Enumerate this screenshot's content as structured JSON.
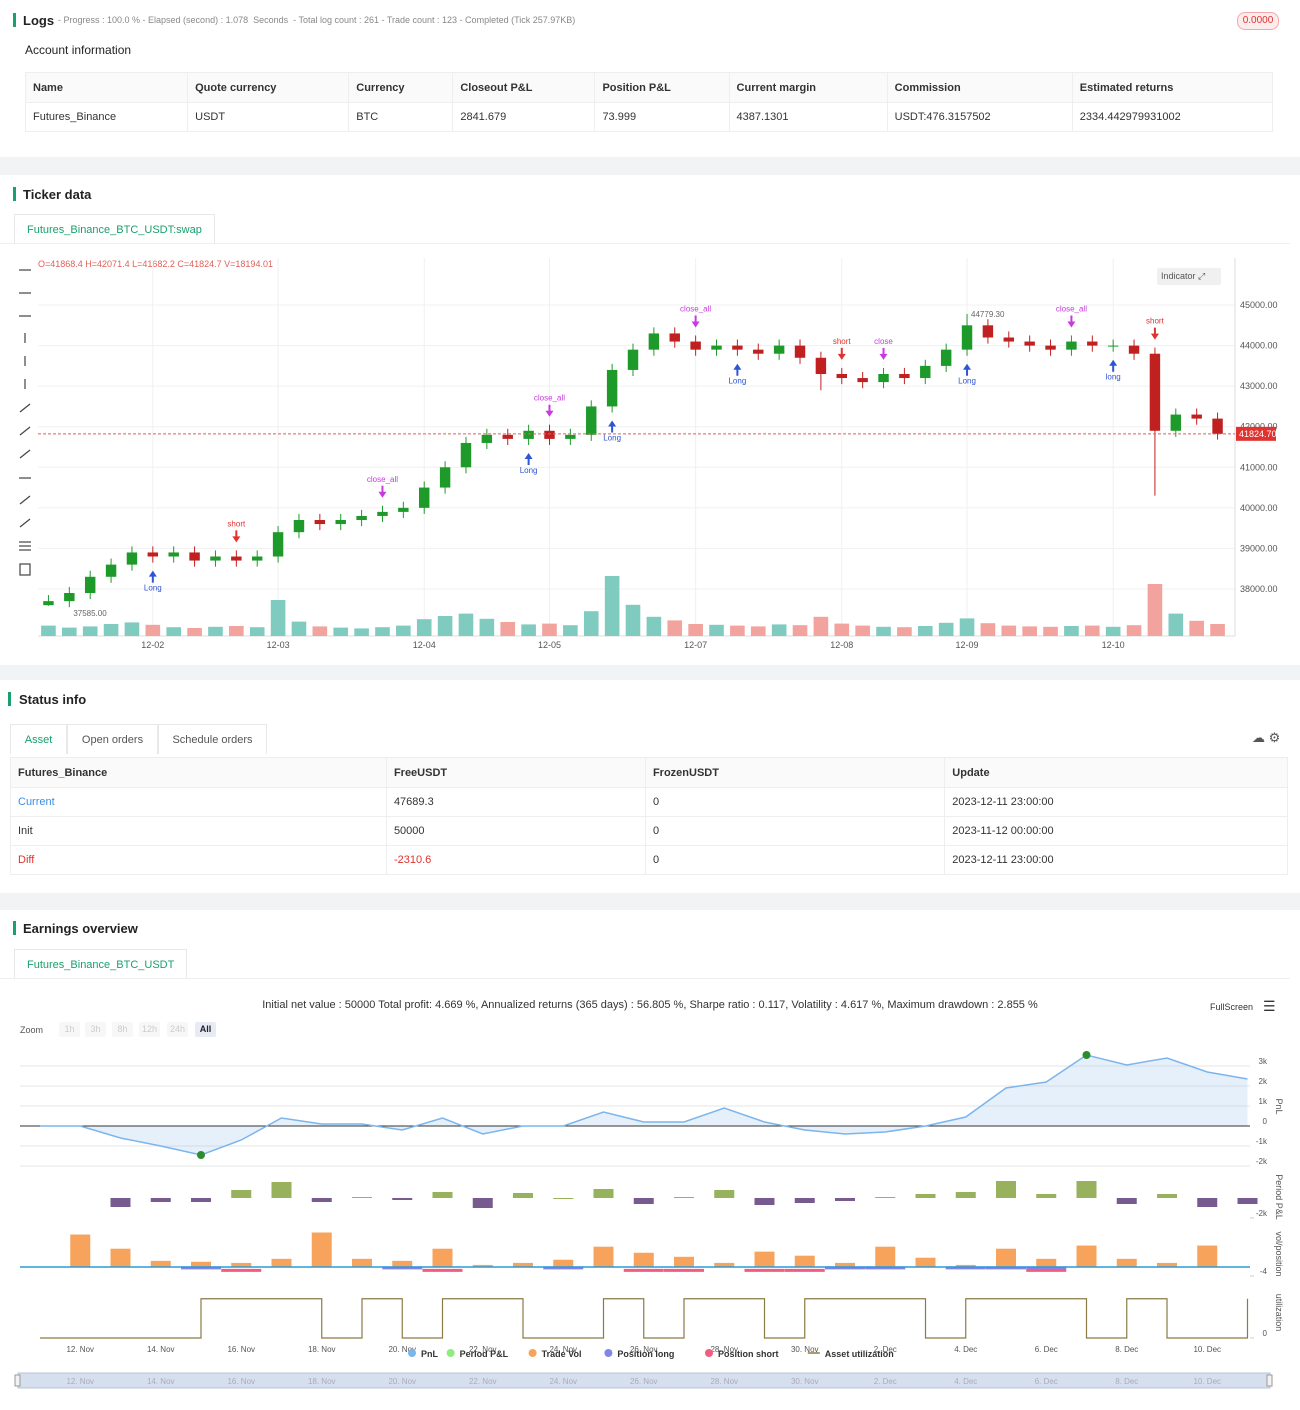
{
  "logs": {
    "title": "Logs",
    "summary": "- Progress : 100.0 % - Elapsed (second) : 1.078  Seconds  - Total log count : 261 - Trade count : 123 - Completed (Tick 257.97KB)",
    "badge": "0.0000"
  },
  "account": {
    "title": "Account information",
    "headers": [
      "Name",
      "Quote currency",
      "Currency",
      "Closeout P&L",
      "Position P&L",
      "Current margin",
      "Commission",
      "Estimated returns"
    ],
    "rows": [
      [
        "Futures_Binance",
        "USDT",
        "BTC",
        "2841.679",
        "73.999",
        "4387.1301",
        "USDT:476.3157502",
        "2334.442979931002"
      ]
    ]
  },
  "ticker": {
    "title": "Ticker data",
    "tab": "Futures_Binance_BTC_USDT:swap",
    "ohlc": "O=41868.4 H=42071.4 L=41682.2 C=41824.7 V=18194.01",
    "indicator_button": "Indicator",
    "chart_data": {
      "type": "candlestick",
      "categories": [
        null,
        null,
        null,
        null,
        null,
        "12-02",
        null,
        null,
        null,
        null,
        null,
        "12-03",
        null,
        null,
        null,
        null,
        null,
        null,
        "12-04",
        null,
        null,
        null,
        null,
        null,
        "12-05",
        null,
        null,
        null,
        null,
        null,
        null,
        "12-07",
        null,
        null,
        null,
        null,
        null,
        null,
        "12-08",
        null,
        null,
        null,
        null,
        null,
        "12-09",
        null,
        null,
        null,
        null,
        null,
        null,
        "12-10",
        null,
        null,
        null,
        null,
        null
      ],
      "open": [
        37600,
        37700,
        37900,
        38300,
        38600,
        38900,
        38800,
        38900,
        38700,
        38800,
        38700,
        38800,
        39400,
        39700,
        39600,
        39700,
        39800,
        39900,
        40000,
        40500,
        41000,
        41600,
        41800,
        41700,
        41900,
        41700,
        41800,
        42500,
        43400,
        43900,
        44300,
        44100,
        43900,
        44000,
        43900,
        43800,
        44000,
        43700,
        43300,
        43200,
        43100,
        43300,
        43200,
        43500,
        43900,
        44500,
        44200,
        44100,
        44000,
        43900,
        44100,
        44000,
        44000,
        43800,
        41900,
        42300,
        42200
      ],
      "high": [
        37850,
        38050,
        38450,
        38750,
        39050,
        39050,
        39050,
        39050,
        38950,
        38950,
        38950,
        39550,
        39850,
        39850,
        39850,
        39950,
        40050,
        40150,
        40650,
        41150,
        41750,
        41950,
        41950,
        42050,
        42050,
        41950,
        42650,
        43550,
        44050,
        44450,
        44450,
        44250,
        44150,
        44150,
        44050,
        44150,
        44150,
        43850,
        43450,
        43350,
        43450,
        43450,
        43650,
        44050,
        44779.3,
        44650,
        44350,
        44250,
        44150,
        44250,
        44250,
        44150,
        44150,
        43950,
        42450,
        42450,
        42350
      ],
      "low": [
        37585,
        37550,
        37750,
        38150,
        38450,
        38650,
        38650,
        38550,
        38550,
        38550,
        38550,
        38650,
        39250,
        39450,
        39450,
        39550,
        39650,
        39750,
        39850,
        40350,
        40850,
        41450,
        41550,
        41550,
        41550,
        41550,
        41650,
        42350,
        43250,
        43750,
        43950,
        43750,
        43750,
        43750,
        43650,
        43650,
        43550,
        42900,
        43050,
        42950,
        42950,
        43050,
        43050,
        43350,
        43750,
        44050,
        43950,
        43850,
        43750,
        43750,
        43850,
        43850,
        43650,
        40300,
        41750,
        42050,
        41682.2
      ],
      "close": [
        37700,
        37900,
        38300,
        38600,
        38900,
        38800,
        38900,
        38700,
        38800,
        38700,
        38800,
        39400,
        39700,
        39600,
        39700,
        39800,
        39900,
        40000,
        40500,
        41000,
        41600,
        41800,
        41700,
        41900,
        41700,
        41800,
        42500,
        43400,
        43900,
        44300,
        44100,
        43900,
        44000,
        43900,
        43800,
        44000,
        43700,
        43300,
        43200,
        43100,
        43300,
        43200,
        43500,
        43900,
        44500,
        44200,
        44100,
        44000,
        43900,
        44100,
        44000,
        44000,
        43800,
        41900,
        42300,
        42200,
        41824.7
      ],
      "volume": [
        2600,
        2100,
        2400,
        3000,
        3400,
        2800,
        2200,
        2000,
        2300,
        2500,
        2200,
        9000,
        3600,
        2400,
        2100,
        1900,
        2200,
        2600,
        4200,
        5000,
        5600,
        4300,
        3500,
        2900,
        3100,
        2700,
        6200,
        15000,
        7800,
        4800,
        3900,
        3000,
        2800,
        2600,
        2400,
        2900,
        2700,
        4800,
        3100,
        2600,
        2300,
        2200,
        2500,
        3300,
        4400,
        3200,
        2600,
        2400,
        2300,
        2500,
        2600,
        2300,
        2700,
        13000,
        5600,
        3800,
        3000
      ],
      "volume_ylim": [
        0,
        16000
      ],
      "up_color": "#1d9a2a",
      "down_color": "#c0201f",
      "volume_up_color": "#80cbc0",
      "volume_down_color": "#f2a39d",
      "ylim": [
        36840,
        46160
      ],
      "yticks": [
        {
          "value": 38000,
          "label": "38000.00"
        },
        {
          "value": 39000,
          "label": "39000.00"
        },
        {
          "value": 40000,
          "label": "40000.00"
        },
        {
          "value": 41000,
          "label": "41000.00"
        },
        {
          "value": 42000,
          "label": "42000.00"
        },
        {
          "value": 43000,
          "label": "43000.00"
        },
        {
          "value": 44000,
          "label": "44000.00"
        },
        {
          "value": 45000,
          "label": "45000.00"
        }
      ],
      "last_price": {
        "value": 41824.7,
        "label": "41824.70"
      },
      "high_label": {
        "value": 44779.3,
        "label": "44779.30"
      },
      "low_label": {
        "value": 37585,
        "label": "37585.00"
      },
      "grid": true,
      "signals": [
        {
          "text": "Long",
          "candle": 5
        },
        {
          "text": "short",
          "candle": 9
        },
        {
          "text": "close_all",
          "candle": 16
        },
        {
          "text": "Long",
          "candle": 23
        },
        {
          "text": "close_all",
          "candle": 24
        },
        {
          "text": "Long",
          "candle": 27
        },
        {
          "text": "close_all",
          "candle": 31
        },
        {
          "text": "Long",
          "candle": 33
        },
        {
          "text": "short",
          "candle": 38
        },
        {
          "text": "close",
          "candle": 40
        },
        {
          "text": "Long",
          "candle": 44
        },
        {
          "text": "close_all",
          "candle": 49
        },
        {
          "text": "long",
          "candle": 51
        },
        {
          "text": "short",
          "candle": 53
        }
      ]
    }
  },
  "status": {
    "title": "Status info",
    "tabs": [
      "Asset",
      "Open orders",
      "Schedule orders"
    ],
    "headers": [
      "Futures_Binance",
      "FreeUSDT",
      "FrozenUSDT",
      "Update"
    ],
    "rows": [
      [
        "Current",
        "47689.3",
        "0",
        "2023-12-11 23:00:00"
      ],
      [
        "Init",
        "50000",
        "0",
        "2023-11-12 00:00:00"
      ],
      [
        "Diff",
        "-2310.6",
        "0",
        "2023-12-11 23:00:00"
      ]
    ]
  },
  "earnings": {
    "title": "Earnings overview",
    "tab": "Futures_Binance_BTC_USDT",
    "summary": "Initial net value : 50000 Total profit: 4.669 %, Annualized returns (365 days) : 56.805 %, Sharpe ratio : 0.117, Volatility : 4.617 %, Maximum drawdown : 2.855 %",
    "fullscreen": "FullScreen",
    "zoom_label": "Zoom",
    "zoom_buttons": [
      "1h",
      "3h",
      "8h",
      "12h",
      "24h",
      "All"
    ],
    "categories": [
      null,
      "12. Nov",
      null,
      "14. Nov",
      null,
      "16. Nov",
      null,
      "18. Nov",
      null,
      "20. Nov",
      null,
      "22. Nov",
      null,
      "24. Nov",
      null,
      "26. Nov",
      null,
      "28. Nov",
      null,
      "30. Nov",
      null,
      "2. Dec",
      null,
      "4. Dec",
      null,
      "6. Dec",
      null,
      "8. Dec",
      null,
      "10. Dec",
      null
    ],
    "chart_data": [
      {
        "type": "area",
        "ylabel": "PnL",
        "ylim": [
          -2000,
          3950
        ],
        "yticks": [
          {
            "value": -2000,
            "label": "-2k"
          },
          {
            "value": -1000,
            "label": "-1k"
          },
          0,
          {
            "value": 1000,
            "label": "1k"
          },
          {
            "value": 2000,
            "label": "2k"
          },
          {
            "value": 3000,
            "label": "3k"
          }
        ],
        "series": [
          {
            "name": "PnL",
            "color": "#7cb5ec",
            "values": [
              0,
              0,
              -600,
              -1000,
              -1450,
              -700,
              400,
              100,
              100,
              -200,
              400,
              -400,
              0,
              0,
              700,
              200,
              200,
              900,
              200,
              -200,
              -400,
              -300,
              0,
              450,
              1900,
              2200,
              3550,
              3050,
              3400,
              2700,
              2350
            ]
          }
        ]
      },
      {
        "type": "bar",
        "ylabel": "Period P&L",
        "ylim": [
          -2400,
          2600
        ],
        "yticks": [
          {
            "value": -2000,
            "label": "-2k"
          }
        ],
        "series": [
          {
            "name": "Period P&L",
            "color": "#90ed7d",
            "positive_color": "#97b15c",
            "negative_color": "#775a8f",
            "values": [
              null,
              null,
              -900,
              -400,
              -400,
              800,
              1600,
              -400,
              100,
              -200,
              600,
              -1000,
              500,
              0,
              900,
              -600,
              100,
              800,
              -700,
              -500,
              -300,
              100,
              400,
              600,
              1700,
              400,
              1700,
              -600,
              400,
              -900,
              -600
            ]
          }
        ]
      },
      {
        "type": "bar",
        "ylabel": "vol/position",
        "ylim": [
          -5.8,
          17.3
        ],
        "yticks": [
          -4
        ],
        "series": [
          {
            "name": "Trade Vol",
            "color": "#f7a35c",
            "values": [
              null,
              14.4,
              8.1,
              2.7,
              2.3,
              1.8,
              3.6,
              15.3,
              3.6,
              2.7,
              8.1,
              0.9,
              1.8,
              3.2,
              9,
              6.3,
              4.5,
              1.8,
              6.8,
              5,
              1.8,
              9,
              4.1,
              0.9,
              8.1,
              3.6,
              9.5,
              3.6,
              1.8,
              9.5,
              null
            ]
          },
          {
            "name": "Position long",
            "color": "#8085e9",
            "values": [
              null,
              null,
              null,
              null,
              -0.4,
              null,
              null,
              null,
              null,
              -0.4,
              null,
              null,
              null,
              -0.4,
              null,
              null,
              null,
              null,
              null,
              null,
              -0.4,
              -0.4,
              null,
              -0.4,
              -0.4,
              -0.4,
              null,
              null,
              null,
              null,
              null
            ]
          },
          {
            "name": "Position short",
            "color": "#f15c80",
            "values": [
              null,
              null,
              null,
              null,
              null,
              -1.5,
              null,
              null,
              null,
              null,
              -1.5,
              null,
              null,
              null,
              null,
              -1.5,
              -1.5,
              null,
              -1.5,
              -1.5,
              null,
              null,
              null,
              null,
              null,
              -1.5,
              null,
              null,
              null,
              null,
              null
            ]
          }
        ]
      },
      {
        "type": "step",
        "ylabel": "utilization",
        "ylim": [
          0,
          1.3
        ],
        "yticks": [
          0
        ],
        "series": [
          {
            "name": "Asset utilization",
            "color": "#8a7a45",
            "values": [
              0,
              0,
              0,
              0,
              1,
              1,
              1,
              0,
              1,
              0,
              1,
              1,
              0,
              0,
              1,
              0,
              1,
              1,
              0,
              1,
              1,
              1,
              0,
              1,
              1,
              1,
              0,
              1,
              0,
              0,
              1
            ]
          }
        ]
      }
    ]
  }
}
